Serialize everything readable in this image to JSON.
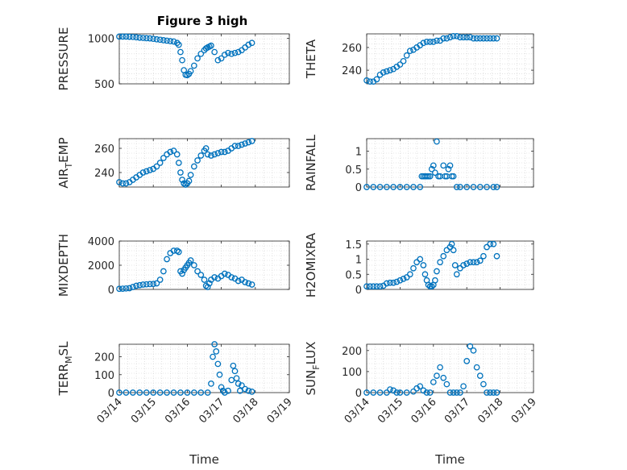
{
  "figure_title": "Figure 3 high",
  "colors": {
    "marker": "#0072BD"
  },
  "chart_data": [
    {
      "type": "scatter",
      "ylabel": "PRESSURE",
      "ylabel_sub": "",
      "ylabel_tail": "",
      "title": "Figure 3 high",
      "xlabel": "",
      "ylim": [
        500,
        1050
      ],
      "yticks": [
        500,
        1000
      ],
      "ytick_labels": [
        "500",
        "1000"
      ],
      "xlim": [
        0,
        5
      ],
      "xticks": [
        0,
        1,
        2,
        3,
        4,
        5
      ],
      "xtick_labels": [],
      "grid": true,
      "x": [
        0,
        0.1,
        0.2,
        0.3,
        0.4,
        0.5,
        0.6,
        0.7,
        0.8,
        0.9,
        1.0,
        1.1,
        1.2,
        1.3,
        1.4,
        1.5,
        1.6,
        1.7,
        1.75,
        1.8,
        1.85,
        1.9,
        1.95,
        2.0,
        2.05,
        2.1,
        2.2,
        2.3,
        2.4,
        2.5,
        2.55,
        2.6,
        2.65,
        2.7,
        2.8,
        2.9,
        3.0,
        3.1,
        3.2,
        3.3,
        3.4,
        3.5,
        3.6,
        3.7,
        3.8,
        3.9
      ],
      "y": [
        1020,
        1020,
        1020,
        1018,
        1016,
        1012,
        1008,
        1005,
        1002,
        1000,
        995,
        990,
        985,
        980,
        975,
        970,
        966,
        950,
        930,
        850,
        760,
        650,
        600,
        595,
        610,
        640,
        700,
        780,
        830,
        870,
        890,
        900,
        910,
        920,
        850,
        760,
        780,
        820,
        840,
        830,
        840,
        850,
        870,
        900,
        930,
        950
      ]
    },
    {
      "type": "scatter",
      "ylabel": "THETA",
      "ylabel_sub": "",
      "ylabel_tail": "",
      "xlabel": "",
      "ylim": [
        228,
        272
      ],
      "yticks": [
        240,
        260
      ],
      "ytick_labels": [
        "240",
        "260"
      ],
      "xlim": [
        0,
        5
      ],
      "xticks": [
        0,
        1,
        2,
        3,
        4,
        5
      ],
      "xtick_labels": [],
      "grid": true,
      "x": [
        0,
        0.1,
        0.2,
        0.3,
        0.4,
        0.5,
        0.6,
        0.7,
        0.8,
        0.9,
        1.0,
        1.1,
        1.2,
        1.3,
        1.4,
        1.5,
        1.6,
        1.7,
        1.8,
        1.9,
        2.0,
        2.1,
        2.2,
        2.3,
        2.4,
        2.5,
        2.6,
        2.7,
        2.8,
        2.9,
        3.0,
        3.1,
        3.2,
        3.3,
        3.4,
        3.5,
        3.6,
        3.7,
        3.8,
        3.9
      ],
      "y": [
        231,
        230,
        230,
        232,
        236,
        238,
        239,
        240,
        241,
        243,
        245,
        248,
        253,
        257,
        258,
        260,
        262,
        264,
        265,
        265,
        265,
        266,
        266,
        268,
        268,
        269,
        270,
        270,
        269,
        269,
        269,
        269,
        268,
        268,
        268,
        268,
        268,
        268,
        268,
        268
      ]
    },
    {
      "type": "scatter",
      "ylabel": "AIR",
      "ylabel_sub": "T",
      "ylabel_tail": "EMP",
      "xlabel": "",
      "ylim": [
        228,
        268
      ],
      "yticks": [
        240,
        260
      ],
      "ytick_labels": [
        "240",
        "260"
      ],
      "xlim": [
        0,
        5
      ],
      "xticks": [
        0,
        1,
        2,
        3,
        4,
        5
      ],
      "xtick_labels": [],
      "grid": true,
      "x": [
        0,
        0.1,
        0.2,
        0.3,
        0.4,
        0.5,
        0.6,
        0.7,
        0.8,
        0.9,
        1.0,
        1.1,
        1.2,
        1.3,
        1.4,
        1.5,
        1.6,
        1.7,
        1.75,
        1.8,
        1.85,
        1.9,
        1.95,
        2.0,
        2.05,
        2.1,
        2.2,
        2.3,
        2.4,
        2.5,
        2.55,
        2.6,
        2.7,
        2.8,
        2.9,
        3.0,
        3.1,
        3.2,
        3.3,
        3.4,
        3.5,
        3.6,
        3.7,
        3.8,
        3.9
      ],
      "y": [
        232,
        231,
        231,
        232,
        234,
        236,
        238,
        240,
        241,
        242,
        243,
        245,
        248,
        252,
        255,
        257,
        258,
        255,
        248,
        240,
        234,
        231,
        230,
        231,
        233,
        238,
        245,
        250,
        254,
        258,
        260,
        255,
        254,
        255,
        256,
        257,
        257,
        258,
        260,
        262,
        262,
        263,
        264,
        265,
        266
      ]
    },
    {
      "type": "scatter",
      "ylabel": "RAINFALL",
      "ylabel_sub": "",
      "ylabel_tail": "",
      "xlabel": "",
      "ylim": [
        0,
        1.35
      ],
      "yticks": [
        0,
        0.5,
        1
      ],
      "ytick_labels": [
        "0",
        "0.5",
        "1"
      ],
      "xlim": [
        0,
        5
      ],
      "xticks": [
        0,
        1,
        2,
        3,
        4,
        5
      ],
      "xtick_labels": [],
      "grid": true,
      "x": [
        0,
        0.2,
        0.4,
        0.6,
        0.8,
        1.0,
        1.2,
        1.4,
        1.6,
        1.65,
        1.7,
        1.75,
        1.8,
        1.85,
        1.9,
        1.95,
        2.0,
        2.05,
        2.1,
        2.15,
        2.2,
        2.3,
        2.35,
        2.4,
        2.45,
        2.5,
        2.55,
        2.6,
        2.7,
        2.8,
        3.0,
        3.2,
        3.4,
        3.6,
        3.8,
        3.9
      ],
      "y": [
        0,
        0,
        0,
        0,
        0,
        0,
        0,
        0,
        0,
        0.3,
        0.3,
        0.3,
        0.3,
        0.3,
        0.3,
        0.5,
        0.6,
        0.4,
        1.27,
        0.3,
        0.3,
        0.6,
        0.3,
        0.3,
        0.5,
        0.6,
        0.3,
        0.3,
        0,
        0,
        0,
        0,
        0,
        0,
        0,
        0
      ]
    },
    {
      "type": "scatter",
      "ylabel": "MIXDEPTH",
      "ylabel_sub": "",
      "ylabel_tail": "",
      "xlabel": "",
      "ylim": [
        0,
        4000
      ],
      "yticks": [
        0,
        2000,
        4000
      ],
      "ytick_labels": [
        "0",
        "2000",
        "4000"
      ],
      "xlim": [
        0,
        5
      ],
      "xticks": [
        0,
        1,
        2,
        3,
        4,
        5
      ],
      "xtick_labels": [],
      "grid": true,
      "x": [
        0,
        0.1,
        0.2,
        0.3,
        0.4,
        0.5,
        0.6,
        0.7,
        0.8,
        0.9,
        1.0,
        1.1,
        1.2,
        1.3,
        1.4,
        1.5,
        1.6,
        1.7,
        1.75,
        1.8,
        1.85,
        1.9,
        1.95,
        2.0,
        2.05,
        2.1,
        2.2,
        2.3,
        2.4,
        2.5,
        2.55,
        2.6,
        2.65,
        2.7,
        2.8,
        2.9,
        3.0,
        3.1,
        3.2,
        3.3,
        3.4,
        3.5,
        3.6,
        3.7,
        3.8,
        3.9
      ],
      "y": [
        50,
        60,
        80,
        100,
        200,
        300,
        350,
        400,
        420,
        440,
        450,
        500,
        800,
        1500,
        2500,
        3000,
        3200,
        3200,
        3100,
        1500,
        1300,
        1600,
        1800,
        2000,
        2200,
        2400,
        2000,
        1500,
        1200,
        800,
        300,
        200,
        500,
        800,
        1000,
        900,
        1100,
        1300,
        1200,
        1000,
        900,
        700,
        800,
        600,
        500,
        400
      ]
    },
    {
      "type": "scatter",
      "ylabel": "H2OMIXRA",
      "ylabel_sub": "",
      "ylabel_tail": "",
      "xlabel": "",
      "ylim": [
        0,
        1.6
      ],
      "yticks": [
        0,
        0.5,
        1,
        1.5
      ],
      "ytick_labels": [
        "0",
        "0.5",
        "1",
        "1.5"
      ],
      "xlim": [
        0,
        5
      ],
      "xticks": [
        0,
        1,
        2,
        3,
        4,
        5
      ],
      "xtick_labels": [],
      "grid": true,
      "x": [
        0,
        0.1,
        0.2,
        0.3,
        0.4,
        0.5,
        0.6,
        0.7,
        0.8,
        0.9,
        1.0,
        1.1,
        1.2,
        1.3,
        1.4,
        1.5,
        1.6,
        1.7,
        1.75,
        1.8,
        1.85,
        1.9,
        1.95,
        2.0,
        2.05,
        2.1,
        2.2,
        2.3,
        2.4,
        2.5,
        2.55,
        2.6,
        2.65,
        2.7,
        2.8,
        2.9,
        3.0,
        3.1,
        3.2,
        3.3,
        3.4,
        3.5,
        3.6,
        3.7,
        3.8,
        3.9
      ],
      "y": [
        0.1,
        0.1,
        0.1,
        0.1,
        0.1,
        0.12,
        0.2,
        0.22,
        0.22,
        0.25,
        0.3,
        0.35,
        0.4,
        0.5,
        0.7,
        0.9,
        1.0,
        0.8,
        0.5,
        0.3,
        0.15,
        0.1,
        0.1,
        0.15,
        0.3,
        0.6,
        0.9,
        1.1,
        1.3,
        1.4,
        1.5,
        1.3,
        0.8,
        0.5,
        0.7,
        0.8,
        0.85,
        0.9,
        0.9,
        0.9,
        0.95,
        1.1,
        1.4,
        1.5,
        1.5,
        1.1
      ]
    },
    {
      "type": "scatter",
      "ylabel": "TERR",
      "ylabel_sub": "M",
      "ylabel_tail": "SL",
      "xlabel": "Time",
      "ylim": [
        0,
        270
      ],
      "yticks": [
        0,
        100,
        200
      ],
      "ytick_labels": [
        "0",
        "100",
        "200"
      ],
      "xlim": [
        0,
        5
      ],
      "xticks": [
        0,
        1,
        2,
        3,
        4,
        5
      ],
      "xtick_labels": [
        "03/14",
        "03/15",
        "03/16",
        "03/17",
        "03/18",
        "03/19"
      ],
      "grid": true,
      "x": [
        0,
        0.2,
        0.4,
        0.6,
        0.8,
        1.0,
        1.2,
        1.4,
        1.6,
        1.8,
        2.0,
        2.2,
        2.4,
        2.6,
        2.7,
        2.75,
        2.8,
        2.85,
        2.9,
        2.95,
        3.0,
        3.05,
        3.1,
        3.2,
        3.3,
        3.35,
        3.4,
        3.45,
        3.5,
        3.55,
        3.6,
        3.7,
        3.8,
        3.9
      ],
      "y": [
        0,
        0,
        0,
        0,
        0,
        0,
        0,
        0,
        0,
        0,
        0,
        0,
        0,
        0,
        50,
        200,
        270,
        230,
        160,
        100,
        30,
        10,
        0,
        10,
        70,
        150,
        120,
        80,
        50,
        10,
        40,
        20,
        10,
        5
      ]
    },
    {
      "type": "scatter",
      "ylabel": "SUN",
      "ylabel_sub": "F",
      "ylabel_tail": "LUX",
      "xlabel": "Time",
      "ylim": [
        0,
        230
      ],
      "yticks": [
        0,
        100,
        200
      ],
      "ytick_labels": [
        "0",
        "100",
        "200"
      ],
      "xlim": [
        0,
        5
      ],
      "xticks": [
        0,
        1,
        2,
        3,
        4,
        5
      ],
      "xtick_labels": [
        "03/14",
        "03/15",
        "03/16",
        "03/17",
        "03/18",
        "03/19"
      ],
      "grid": true,
      "x": [
        0,
        0.2,
        0.4,
        0.6,
        0.7,
        0.8,
        0.9,
        1.0,
        1.2,
        1.4,
        1.5,
        1.6,
        1.7,
        1.8,
        1.9,
        2.0,
        2.1,
        2.2,
        2.3,
        2.4,
        2.5,
        2.6,
        2.7,
        2.8,
        2.9,
        3.0,
        3.1,
        3.2,
        3.3,
        3.4,
        3.5,
        3.6,
        3.7,
        3.8,
        3.9
      ],
      "y": [
        0,
        0,
        0,
        0,
        15,
        10,
        0,
        0,
        0,
        5,
        20,
        30,
        10,
        0,
        0,
        50,
        80,
        120,
        70,
        40,
        0,
        0,
        0,
        0,
        30,
        150,
        220,
        200,
        120,
        80,
        40,
        0,
        0,
        0,
        0
      ]
    }
  ]
}
